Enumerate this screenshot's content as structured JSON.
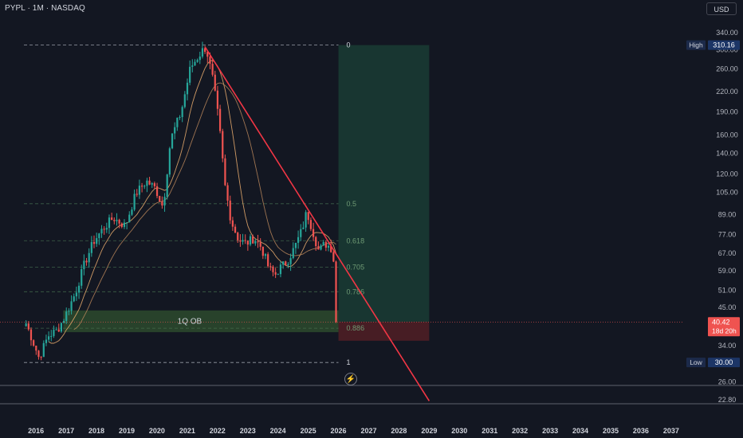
{
  "header": {
    "symbol": "PYPL · 1M · NASDAQ",
    "currency": "USD"
  },
  "colors": {
    "background": "#131722",
    "bull": "#26a69a",
    "bear": "#ef5350",
    "trendline": "#f23645",
    "ma_short": "#f0b070",
    "ma_long": "#b8865a",
    "profit_zone": "#1a3a33",
    "loss_zone": "#4a1e25",
    "fib": "#4c7a55",
    "order_block": "#2d4a2d"
  },
  "labels": {
    "order_block": "1Q OB",
    "high_tag": "High",
    "low_tag": "Low",
    "countdown": "18d 20h"
  },
  "chart_data": {
    "type": "candlestick",
    "scale": "log",
    "x_tick_labels": [
      "2016",
      "2017",
      "2018",
      "2019",
      "2020",
      "2021",
      "2022",
      "2023",
      "2024",
      "2025",
      "2026",
      "2027",
      "2028",
      "2029",
      "2030",
      "2031",
      "2032",
      "2033",
      "2034",
      "2035",
      "2036",
      "2037"
    ],
    "y_tick_labels": [
      "340.00",
      "300.00",
      "260.00",
      "220.00",
      "190.00",
      "160.00",
      "140.00",
      "120.00",
      "105.00",
      "89.00",
      "77.00",
      "67.00",
      "59.00",
      "51.00",
      "45.00",
      "34.00",
      "26.00",
      "22.80"
    ],
    "y_ticks": [
      340,
      300,
      260,
      220,
      190,
      160,
      140,
      120,
      105,
      89,
      77,
      67,
      59,
      51,
      45,
      34,
      26,
      22.8
    ],
    "y_range": [
      21.5,
      380
    ],
    "x_range": [
      2015.6,
      2037.9
    ],
    "high": {
      "label": "High",
      "value": "310.16",
      "price": 310.16
    },
    "low": {
      "label": "Low",
      "value": "30.00",
      "price": 30.0
    },
    "last_price": {
      "value": "40.42",
      "price": 40.42
    },
    "fib_levels": [
      {
        "label": "0",
        "price": 310.16
      },
      {
        "label": "0.5",
        "price": 96.5
      },
      {
        "label": "0.618",
        "price": 73.5
      },
      {
        "label": "0.705",
        "price": 60.5
      },
      {
        "label": "0.786",
        "price": 50.5
      },
      {
        "label": "0.886",
        "price": 38.6
      },
      {
        "label": "1",
        "price": 30.0
      }
    ],
    "fib_x_range": [
      2015.6,
      2026.0
    ],
    "order_block": {
      "label": "1Q OB",
      "x_start": 2016.9,
      "x_end": 2026.0,
      "price_top": 44.0,
      "price_bottom": 37.5
    },
    "position": {
      "x_start": 2026.0,
      "x_end": 2029.0,
      "entry": 40.42,
      "target": 310.16,
      "stop": 35.2
    },
    "trendline": {
      "x1": 2021.6,
      "y1": 305,
      "x2": 2029.0,
      "y2": 22.6
    },
    "anchors": [
      [
        2015.67,
        40.0
      ],
      [
        2015.9,
        35.0
      ],
      [
        2016.1,
        31.0
      ],
      [
        2016.4,
        36.5
      ],
      [
        2016.7,
        38.0
      ],
      [
        2016.95,
        42.0
      ],
      [
        2017.3,
        50.0
      ],
      [
        2017.6,
        62.0
      ],
      [
        2017.9,
        73.0
      ],
      [
        2018.2,
        80.0
      ],
      [
        2018.55,
        87.0
      ],
      [
        2018.95,
        82.0
      ],
      [
        2019.3,
        104.0
      ],
      [
        2019.65,
        114.0
      ],
      [
        2019.95,
        108.0
      ],
      [
        2020.2,
        94.0
      ],
      [
        2020.45,
        155.0
      ],
      [
        2020.8,
        190.0
      ],
      [
        2021.1,
        262.0
      ],
      [
        2021.5,
        298.0
      ],
      [
        2021.62,
        305.0
      ],
      [
        2021.85,
        240.0
      ],
      [
        2022.05,
        175.0
      ],
      [
        2022.25,
        110.0
      ],
      [
        2022.45,
        85.0
      ],
      [
        2022.7,
        74.0
      ],
      [
        2022.95,
        72.0
      ],
      [
        2023.2,
        75.0
      ],
      [
        2023.45,
        70.0
      ],
      [
        2023.7,
        60.0
      ],
      [
        2023.9,
        57.0
      ],
      [
        2024.05,
        60.0
      ],
      [
        2024.3,
        63.0
      ],
      [
        2024.55,
        70.0
      ],
      [
        2024.8,
        80.0
      ],
      [
        2024.95,
        91.0
      ],
      [
        2025.1,
        82.0
      ],
      [
        2025.35,
        68.0
      ],
      [
        2025.55,
        72.0
      ],
      [
        2025.75,
        70.0
      ],
      [
        2025.9,
        60.0
      ],
      [
        2026.0,
        40.42
      ]
    ]
  }
}
